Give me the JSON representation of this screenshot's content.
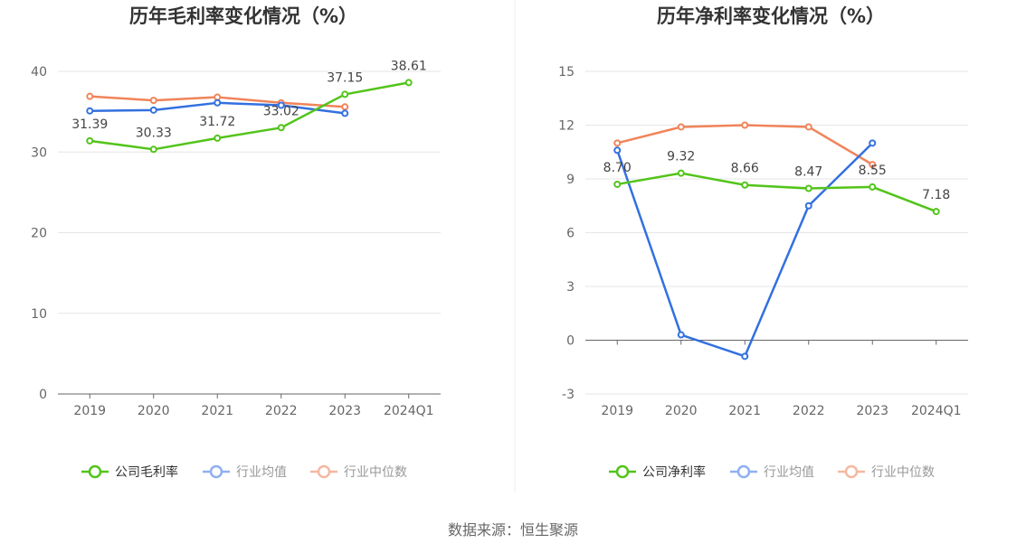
{
  "footer": {
    "source": "数据来源：恒生聚源"
  },
  "colors": {
    "company": "#52c41a",
    "industry_avg": "#3370e0",
    "industry_median": "#f0845a",
    "legend_avg": "#8fb0f0",
    "legend_median": "#f5b8a0",
    "grid": "#e6e6e6",
    "axis": "#666666",
    "divider": "#eeeeee"
  },
  "chart_data": [
    {
      "type": "line",
      "title": "历年毛利率变化情况（%）",
      "categories": [
        "2019",
        "2020",
        "2021",
        "2022",
        "2023",
        "2024Q1"
      ],
      "ylim": [
        0,
        40
      ],
      "yticks": [
        0,
        10,
        20,
        30,
        40
      ],
      "grid": true,
      "legend_position": "bottom-center",
      "series": [
        {
          "name": "公司毛利率",
          "color_key": "company",
          "values": [
            31.39,
            30.33,
            31.72,
            33.02,
            37.15,
            38.61
          ],
          "labels": [
            "31.39",
            "30.33",
            "31.72",
            "33.02",
            "37.15",
            "38.61"
          ]
        },
        {
          "name": "行业均值",
          "color_key": "industry_avg",
          "values": [
            35.1,
            35.2,
            36.1,
            35.8,
            34.8,
            null
          ]
        },
        {
          "name": "行业中位数",
          "color_key": "industry_median",
          "values": [
            36.9,
            36.4,
            36.8,
            36.1,
            35.6,
            null
          ]
        }
      ]
    },
    {
      "type": "line",
      "title": "历年净利率变化情况（%）",
      "categories": [
        "2019",
        "2020",
        "2021",
        "2022",
        "2023",
        "2024Q1"
      ],
      "ylim": [
        -3,
        15
      ],
      "yticks": [
        -3,
        0,
        3,
        6,
        9,
        12,
        15
      ],
      "grid": true,
      "legend_position": "bottom-center",
      "series": [
        {
          "name": "公司净利率",
          "color_key": "company",
          "values": [
            8.7,
            9.32,
            8.66,
            8.47,
            8.55,
            7.18
          ],
          "labels": [
            "8.70",
            "9.32",
            "8.66",
            "8.47",
            "8.55",
            "7.18"
          ]
        },
        {
          "name": "行业均值",
          "color_key": "industry_avg",
          "values": [
            10.6,
            0.3,
            -0.9,
            7.5,
            11.0,
            null
          ]
        },
        {
          "name": "行业中位数",
          "color_key": "industry_median",
          "values": [
            11.0,
            11.9,
            12.0,
            11.9,
            9.8,
            null
          ]
        }
      ]
    }
  ]
}
